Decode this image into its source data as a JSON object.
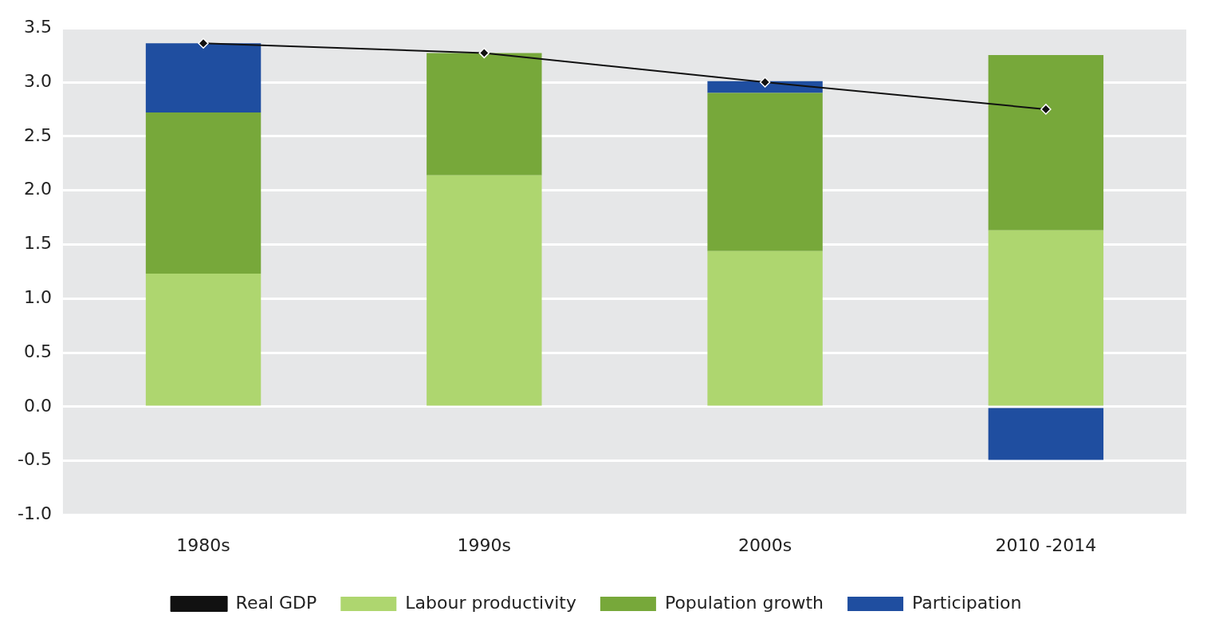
{
  "chart_data": {
    "type": "bar",
    "stacked": true,
    "categories": [
      "1980s",
      "1990s",
      "2000s",
      "2010 -2014"
    ],
    "series": [
      {
        "name": "Labour productivity",
        "color": "#aed66f",
        "values": [
          1.23,
          2.14,
          1.44,
          1.63
        ]
      },
      {
        "name": "Population growth",
        "color": "#77a83a",
        "values": [
          1.49,
          1.13,
          1.46,
          1.62
        ]
      },
      {
        "name": "Participation",
        "color": "#1f4ea0",
        "values": [
          0.64,
          null,
          0.11,
          -0.49
        ]
      },
      {
        "name": "Real GDP",
        "type": "line",
        "color": "#111111",
        "marker": "diamond",
        "values": [
          3.36,
          3.27,
          3.0,
          2.75
        ]
      }
    ],
    "ylim": [
      -1,
      3.5
    ],
    "yticks": [
      {
        "value": -1,
        "label": "-1.0"
      },
      {
        "value": -0.5,
        "label": "-0.5"
      },
      {
        "value": 0,
        "label": "0.0"
      },
      {
        "value": 0.5,
        "label": "0.5"
      },
      {
        "value": 1,
        "label": "1.0"
      },
      {
        "value": 1.5,
        "label": "1.5"
      },
      {
        "value": 2,
        "label": "2.0"
      },
      {
        "value": 2.5,
        "label": "2.5"
      },
      {
        "value": 3,
        "label": "3.0"
      },
      {
        "value": 3.5,
        "label": "3.5"
      }
    ],
    "grid": "y",
    "legend": "bottom"
  }
}
